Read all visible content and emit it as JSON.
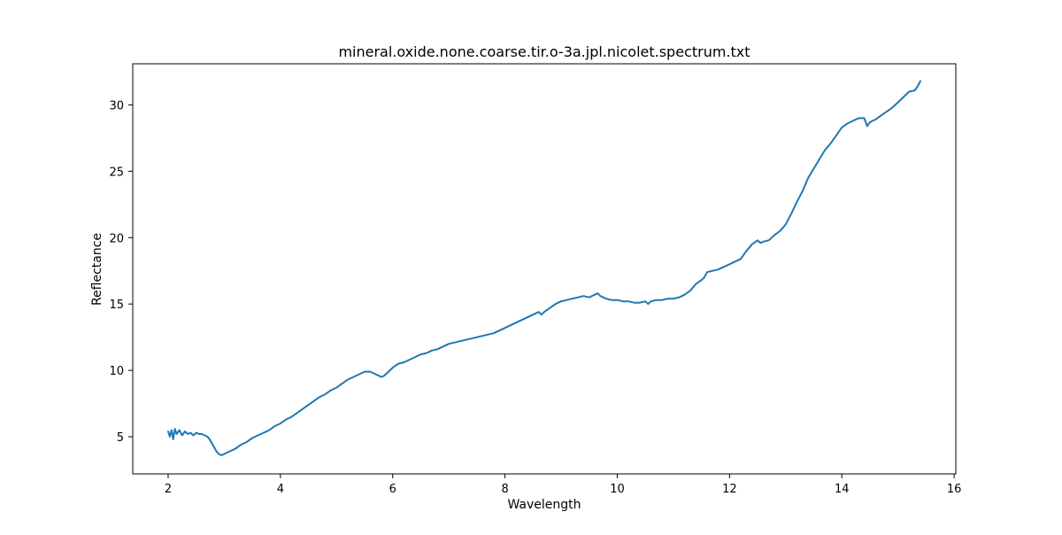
{
  "chart_data": {
    "type": "line",
    "title": "mineral.oxide.none.coarse.tir.o-3a.jpl.nicolet.spectrum.txt",
    "xlabel": "Wavelength",
    "ylabel": "Reflectance",
    "xlim": [
      1.37,
      16.03
    ],
    "ylim": [
      2.2,
      33.1
    ],
    "xticks": [
      2,
      4,
      6,
      8,
      10,
      12,
      14,
      16
    ],
    "yticks": [
      5,
      10,
      15,
      20,
      25,
      30
    ],
    "grid": false,
    "series_color": "#1f77b4",
    "series": [
      {
        "x": [
          2.0,
          2.03,
          2.06,
          2.09,
          2.12,
          2.15,
          2.2,
          2.25,
          2.3,
          2.35,
          2.4,
          2.45,
          2.5,
          2.55,
          2.6,
          2.65,
          2.7,
          2.74,
          2.78,
          2.82,
          2.86,
          2.9,
          2.95,
          3.0,
          3.05,
          3.1,
          3.2,
          3.3,
          3.4,
          3.5,
          3.6,
          3.7,
          3.8,
          3.9,
          4.0,
          4.1,
          4.2,
          4.3,
          4.4,
          4.5,
          4.6,
          4.7,
          4.8,
          4.9,
          5.0,
          5.1,
          5.2,
          5.3,
          5.4,
          5.5,
          5.6,
          5.7,
          5.75,
          5.8,
          5.85,
          5.9,
          6.0,
          6.1,
          6.2,
          6.3,
          6.4,
          6.5,
          6.6,
          6.7,
          6.8,
          6.9,
          7.0,
          7.1,
          7.2,
          7.3,
          7.4,
          7.5,
          7.6,
          7.7,
          7.8,
          7.9,
          8.0,
          8.1,
          8.2,
          8.3,
          8.4,
          8.5,
          8.6,
          8.65,
          8.7,
          8.8,
          8.9,
          9.0,
          9.1,
          9.2,
          9.3,
          9.4,
          9.5,
          9.6,
          9.65,
          9.7,
          9.8,
          9.9,
          10.0,
          10.1,
          10.2,
          10.3,
          10.4,
          10.5,
          10.55,
          10.6,
          10.7,
          10.8,
          10.9,
          11.0,
          11.1,
          11.2,
          11.3,
          11.4,
          11.5,
          11.55,
          11.6,
          11.7,
          11.8,
          11.9,
          12.0,
          12.1,
          12.2,
          12.3,
          12.4,
          12.5,
          12.55,
          12.6,
          12.7,
          12.8,
          12.9,
          13.0,
          13.1,
          13.2,
          13.3,
          13.4,
          13.5,
          13.6,
          13.7,
          13.8,
          13.9,
          14.0,
          14.1,
          14.2,
          14.3,
          14.4,
          14.45,
          14.5,
          14.6,
          14.7,
          14.8,
          14.9,
          15.0,
          15.1,
          15.2,
          15.3,
          15.35,
          15.4
        ],
        "y": [
          5.4,
          5.0,
          5.5,
          4.8,
          5.6,
          5.2,
          5.5,
          5.1,
          5.4,
          5.2,
          5.3,
          5.1,
          5.3,
          5.2,
          5.2,
          5.1,
          5.0,
          4.8,
          4.5,
          4.2,
          3.9,
          3.7,
          3.6,
          3.7,
          3.8,
          3.9,
          4.1,
          4.4,
          4.6,
          4.9,
          5.1,
          5.3,
          5.5,
          5.8,
          6.0,
          6.3,
          6.5,
          6.8,
          7.1,
          7.4,
          7.7,
          8.0,
          8.2,
          8.5,
          8.7,
          9.0,
          9.3,
          9.5,
          9.7,
          9.9,
          9.9,
          9.7,
          9.6,
          9.5,
          9.6,
          9.8,
          10.2,
          10.5,
          10.6,
          10.8,
          11.0,
          11.2,
          11.3,
          11.5,
          11.6,
          11.8,
          12.0,
          12.1,
          12.2,
          12.3,
          12.4,
          12.5,
          12.6,
          12.7,
          12.8,
          13.0,
          13.2,
          13.4,
          13.6,
          13.8,
          14.0,
          14.2,
          14.4,
          14.2,
          14.4,
          14.7,
          15.0,
          15.2,
          15.3,
          15.4,
          15.5,
          15.6,
          15.5,
          15.7,
          15.8,
          15.6,
          15.4,
          15.3,
          15.3,
          15.2,
          15.2,
          15.1,
          15.1,
          15.2,
          15.0,
          15.2,
          15.3,
          15.3,
          15.4,
          15.4,
          15.5,
          15.7,
          16.0,
          16.5,
          16.8,
          17.0,
          17.4,
          17.5,
          17.6,
          17.8,
          18.0,
          18.2,
          18.4,
          19.0,
          19.5,
          19.8,
          19.6,
          19.7,
          19.8,
          20.2,
          20.5,
          21.0,
          21.8,
          22.7,
          23.5,
          24.5,
          25.2,
          25.9,
          26.6,
          27.1,
          27.7,
          28.3,
          28.6,
          28.8,
          29.0,
          29.0,
          28.4,
          28.7,
          28.9,
          29.2,
          29.5,
          29.8,
          30.2,
          30.6,
          31.0,
          31.1,
          31.4,
          31.8
        ]
      }
    ]
  }
}
